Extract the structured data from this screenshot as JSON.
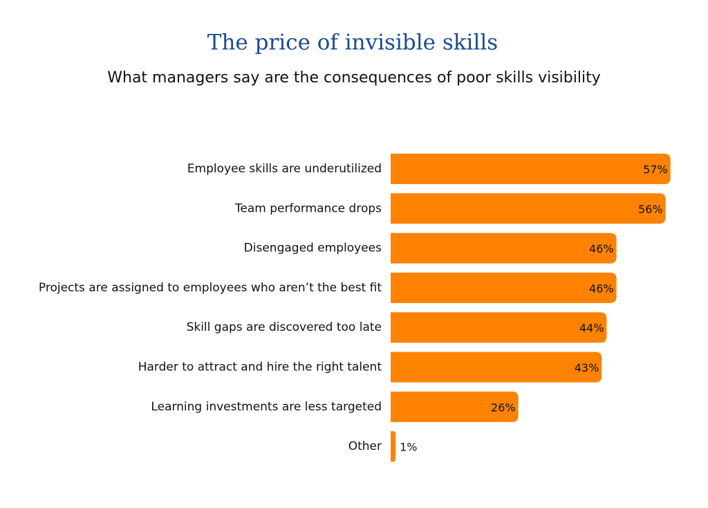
{
  "chart_data": {
    "type": "bar",
    "orientation": "horizontal",
    "title": "The price of invisible skills",
    "subtitle": "What managers say are the consequences of poor skills visibility",
    "categories": [
      "Employee skills are underutilized",
      "Team performance drops",
      "Disengaged employees",
      "Projects are assigned to employees who aren’t the best fit",
      "Skill gaps are discovered too late",
      "Harder to attract and hire the right talent",
      "Learning investments are less targeted",
      "Other"
    ],
    "values": [
      57,
      56,
      46,
      46,
      44,
      43,
      26,
      1
    ],
    "value_labels": [
      "57%",
      "56%",
      "46%",
      "46%",
      "44%",
      "43%",
      "26%",
      "1%"
    ],
    "color": "#ff8200"
  }
}
